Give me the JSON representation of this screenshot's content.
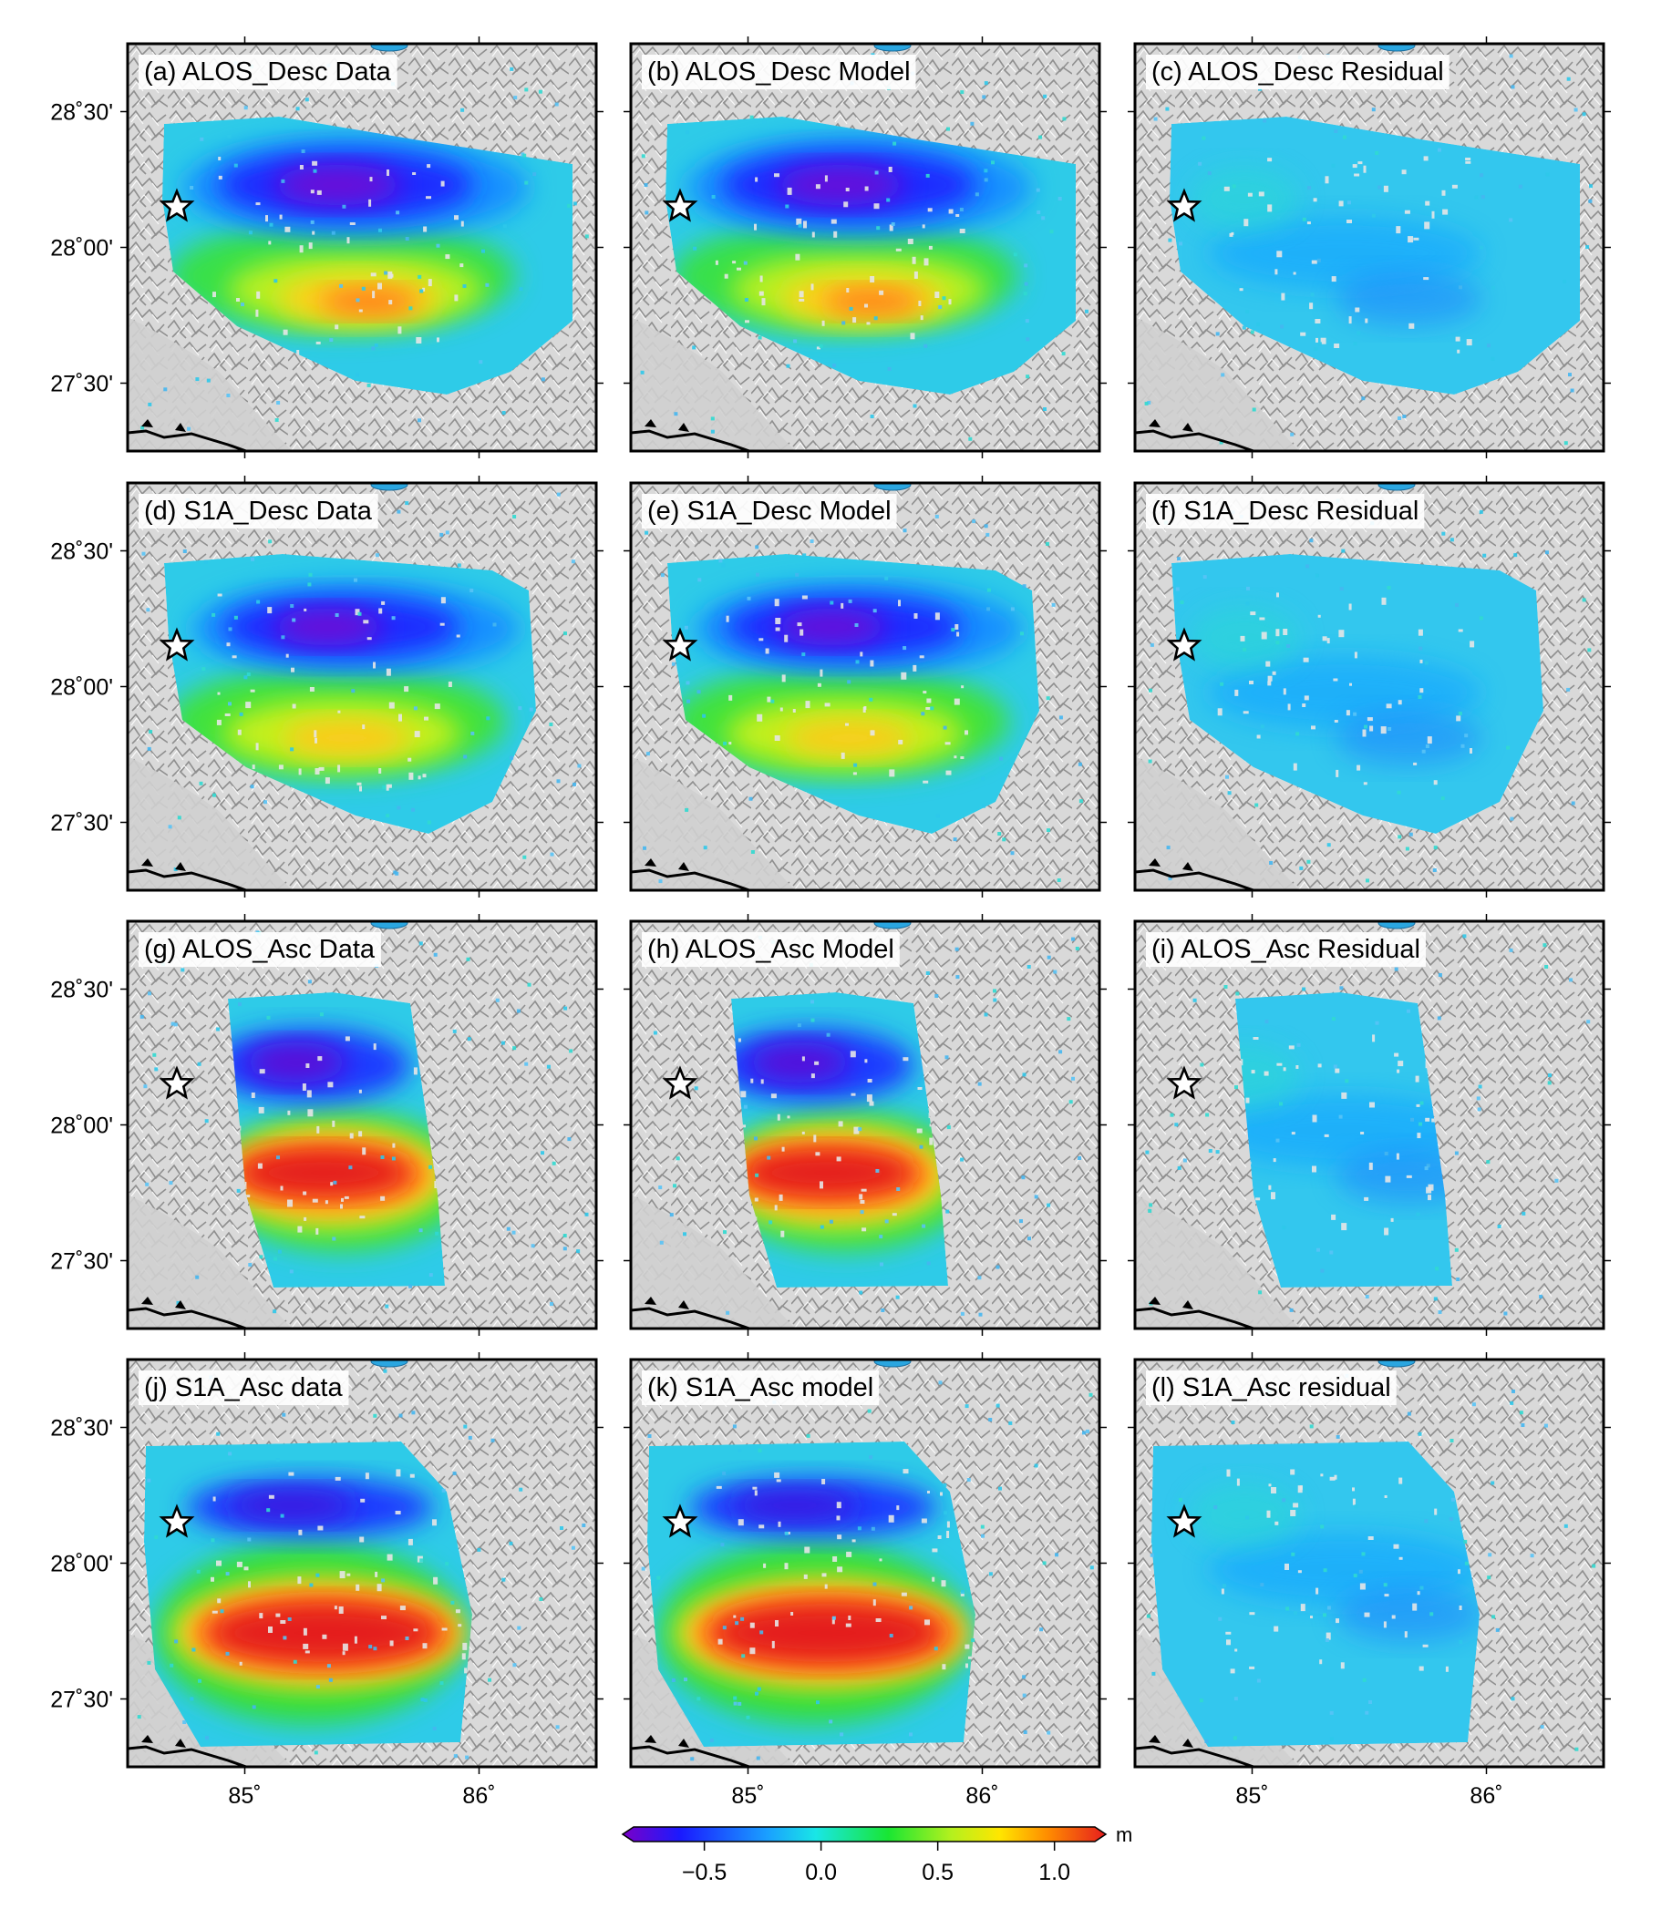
{
  "panels": [
    {
      "id": "a",
      "title": "(a) ALOS_Desc Data",
      "footprint": "desc-alos",
      "kind": "data"
    },
    {
      "id": "b",
      "title": "(b) ALOS_Desc Model",
      "footprint": "desc-alos",
      "kind": "model"
    },
    {
      "id": "c",
      "title": "(c) ALOS_Desc Residual",
      "footprint": "desc-alos",
      "kind": "residual"
    },
    {
      "id": "d",
      "title": "(d) S1A_Desc Data",
      "footprint": "desc-s1a",
      "kind": "data"
    },
    {
      "id": "e",
      "title": "(e) S1A_Desc Model",
      "footprint": "desc-s1a",
      "kind": "model"
    },
    {
      "id": "f",
      "title": "(f) S1A_Desc Residual",
      "footprint": "desc-s1a",
      "kind": "residual"
    },
    {
      "id": "g",
      "title": "(g) ALOS_Asc Data",
      "footprint": "asc-alos",
      "kind": "data"
    },
    {
      "id": "h",
      "title": "(h) ALOS_Asc Model",
      "footprint": "asc-alos",
      "kind": "model"
    },
    {
      "id": "i",
      "title": "(i) ALOS_Asc Residual",
      "footprint": "asc-alos",
      "kind": "residual"
    },
    {
      "id": "j",
      "title": "(j) S1A_Asc data",
      "footprint": "asc-s1a",
      "kind": "data"
    },
    {
      "id": "k",
      "title": "(k) S1A_Asc model",
      "footprint": "asc-s1a",
      "kind": "model"
    },
    {
      "id": "l",
      "title": "(l) S1A_Asc residual",
      "footprint": "asc-s1a",
      "kind": "residual"
    }
  ],
  "axes": {
    "lat_labels": [
      "28˚30'",
      "28˚00'",
      "27˚30'"
    ],
    "lon_labels": [
      "85˚",
      "86˚"
    ],
    "lat_ticks": [
      28.5,
      28.0,
      27.5
    ],
    "lon_ticks": [
      85.0,
      86.0
    ],
    "lon_range": [
      84.5,
      86.5
    ],
    "lat_range": [
      27.25,
      28.75
    ]
  },
  "epicenter": {
    "lon": 84.71,
    "lat": 28.15,
    "symbol": "star-icon"
  },
  "colorbar": {
    "unit": "m",
    "ticks": [
      "−0.5",
      "0.0",
      "0.5",
      "1.0"
    ],
    "tick_values": [
      -0.5,
      0.0,
      0.5,
      1.0
    ],
    "range": [
      -0.85,
      1.22
    ],
    "colors": [
      "#7a00c8",
      "#1a1aff",
      "#1aa0ff",
      "#19e6e6",
      "#19e633",
      "#b4f01e",
      "#ffe600",
      "#ff8c00",
      "#e61e1e"
    ]
  }
}
